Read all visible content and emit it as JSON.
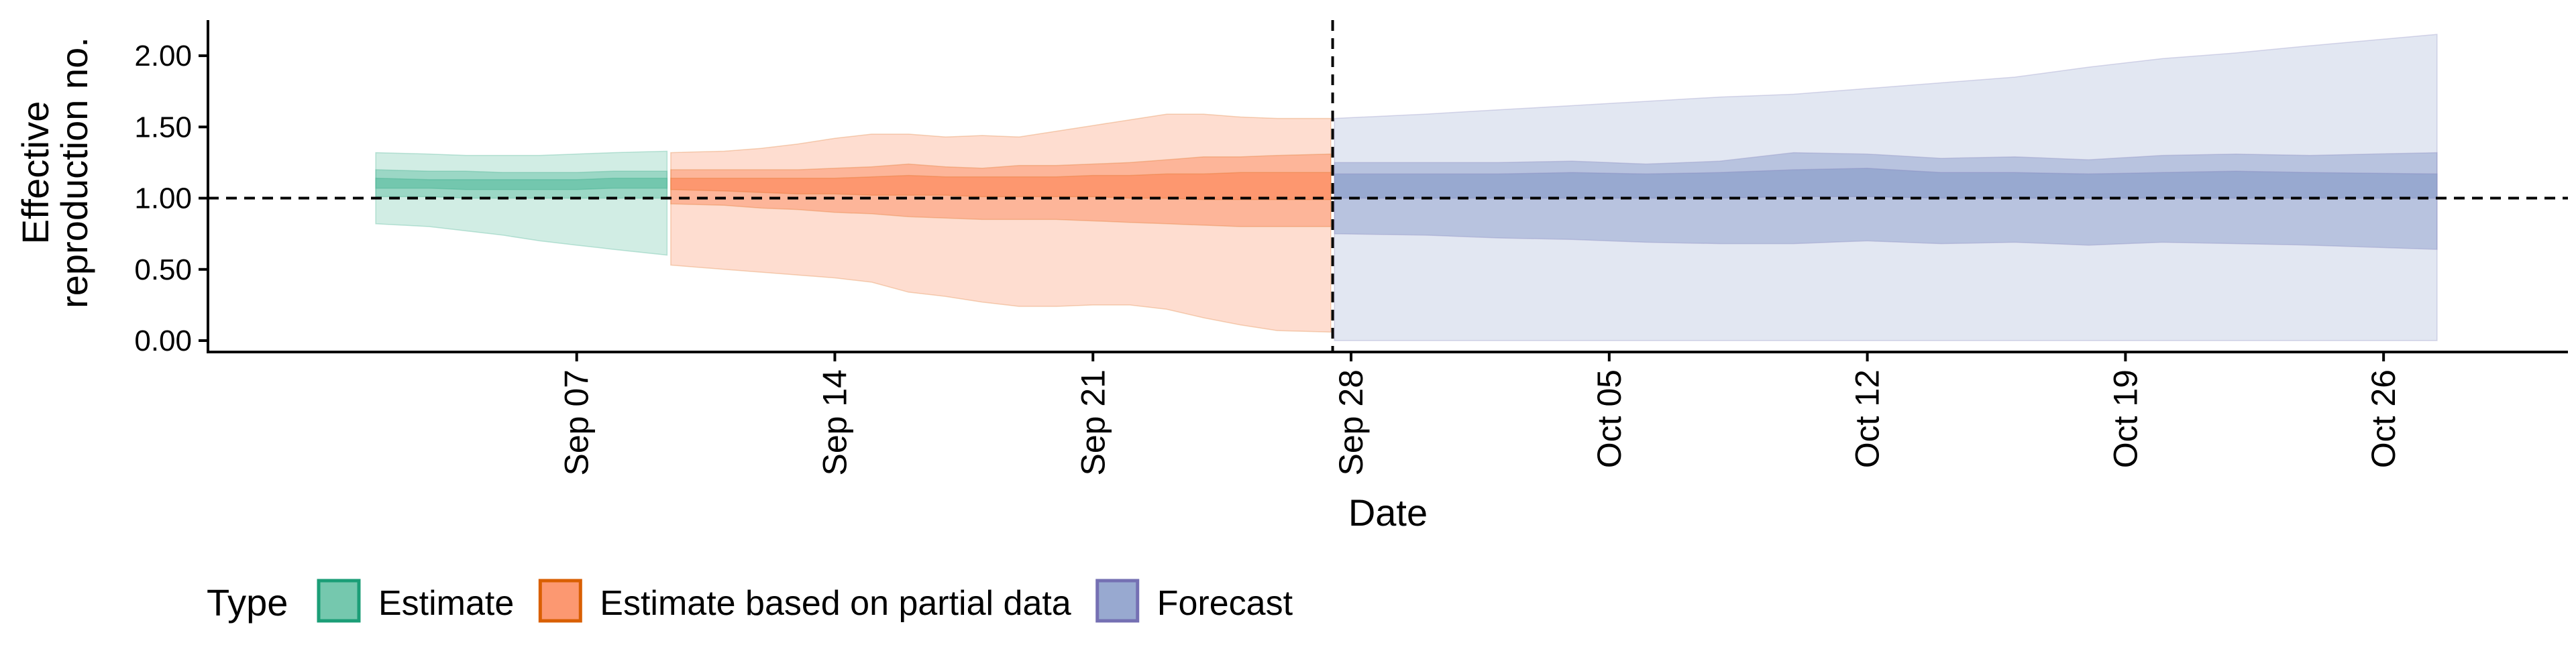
{
  "chart_data": {
    "type": "area",
    "title": "",
    "xlabel": "Date",
    "ylabel_lines": [
      "Effective",
      "reproduction no."
    ],
    "y_ticks": [
      {
        "value": 0.0,
        "label": "0.00"
      },
      {
        "value": 0.5,
        "label": "0.50"
      },
      {
        "value": 1.0,
        "label": "1.00"
      },
      {
        "value": 1.5,
        "label": "1.50"
      },
      {
        "value": 2.0,
        "label": "2.00"
      }
    ],
    "ylim": [
      -0.08,
      2.25
    ],
    "xlim": [
      "2020-08-28",
      "2020-10-31"
    ],
    "x_ticks": [
      {
        "date": "2020-09-07",
        "label": "Sep 07"
      },
      {
        "date": "2020-09-14",
        "label": "Sep 14"
      },
      {
        "date": "2020-09-21",
        "label": "Sep 21"
      },
      {
        "date": "2020-09-28",
        "label": "Sep 28"
      },
      {
        "date": "2020-10-05",
        "label": "Oct 05"
      },
      {
        "date": "2020-10-12",
        "label": "Oct 12"
      },
      {
        "date": "2020-10-19",
        "label": "Oct 19"
      },
      {
        "date": "2020-10-26",
        "label": "Oct 26"
      }
    ],
    "reference_lines": {
      "horizontal_y": 1.0,
      "vertical_date": "2020-09-27"
    },
    "grid": false,
    "legend": {
      "title": "Type",
      "position": "bottom-left"
    },
    "series": [
      {
        "name": "Estimate",
        "fill_color": "#66c2a5",
        "border_color": "#1b9e77",
        "bands": [
          {
            "level": "outer",
            "opacity": 0.3,
            "points": [
              {
                "date": "2020-09-02",
                "lower": 0.82,
                "upper": 1.32
              },
              {
                "date": "2020-09-03",
                "lower": 0.8,
                "upper": 1.31
              },
              {
                "date": "2020-09-04",
                "lower": 0.77,
                "upper": 1.3
              },
              {
                "date": "2020-09-05",
                "lower": 0.74,
                "upper": 1.3
              },
              {
                "date": "2020-09-06",
                "lower": 0.7,
                "upper": 1.3
              },
              {
                "date": "2020-09-07",
                "lower": 0.67,
                "upper": 1.31
              },
              {
                "date": "2020-09-08",
                "lower": 0.64,
                "upper": 1.32
              },
              {
                "date": "2020-09-09",
                "lower": 0.6,
                "upper": 1.33
              }
            ]
          },
          {
            "level": "middle",
            "opacity": 0.5,
            "points": [
              {
                "date": "2020-09-02",
                "lower": 1.01,
                "upper": 1.2
              },
              {
                "date": "2020-09-03",
                "lower": 1.01,
                "upper": 1.19
              },
              {
                "date": "2020-09-04",
                "lower": 1.0,
                "upper": 1.19
              },
              {
                "date": "2020-09-05",
                "lower": 1.0,
                "upper": 1.18
              },
              {
                "date": "2020-09-06",
                "lower": 1.0,
                "upper": 1.18
              },
              {
                "date": "2020-09-07",
                "lower": 1.0,
                "upper": 1.18
              },
              {
                "date": "2020-09-08",
                "lower": 1.0,
                "upper": 1.19
              },
              {
                "date": "2020-09-09",
                "lower": 1.0,
                "upper": 1.19
              }
            ]
          },
          {
            "level": "inner",
            "opacity": 0.75,
            "points": [
              {
                "date": "2020-09-02",
                "lower": 1.07,
                "upper": 1.14
              },
              {
                "date": "2020-09-03",
                "lower": 1.07,
                "upper": 1.13
              },
              {
                "date": "2020-09-04",
                "lower": 1.06,
                "upper": 1.13
              },
              {
                "date": "2020-09-05",
                "lower": 1.06,
                "upper": 1.13
              },
              {
                "date": "2020-09-06",
                "lower": 1.06,
                "upper": 1.13
              },
              {
                "date": "2020-09-07",
                "lower": 1.06,
                "upper": 1.13
              },
              {
                "date": "2020-09-08",
                "lower": 1.07,
                "upper": 1.14
              },
              {
                "date": "2020-09-09",
                "lower": 1.07,
                "upper": 1.14
              }
            ]
          }
        ]
      },
      {
        "name": "Estimate based on partial data",
        "fill_color": "#fc8d62",
        "border_color": "#d95f02",
        "bands": [
          {
            "level": "outer",
            "opacity": 0.3,
            "points": [
              {
                "date": "2020-09-10",
                "lower": 0.53,
                "upper": 1.32
              },
              {
                "date": "2020-09-11",
                "lower": 0.5,
                "upper": 1.33
              },
              {
                "date": "2020-09-12",
                "lower": 0.48,
                "upper": 1.35
              },
              {
                "date": "2020-09-13",
                "lower": 0.46,
                "upper": 1.38
              },
              {
                "date": "2020-09-14",
                "lower": 0.44,
                "upper": 1.42
              },
              {
                "date": "2020-09-15",
                "lower": 0.41,
                "upper": 1.45
              },
              {
                "date": "2020-09-16",
                "lower": 0.34,
                "upper": 1.45
              },
              {
                "date": "2020-09-17",
                "lower": 0.31,
                "upper": 1.43
              },
              {
                "date": "2020-09-18",
                "lower": 0.27,
                "upper": 1.44
              },
              {
                "date": "2020-09-19",
                "lower": 0.24,
                "upper": 1.43
              },
              {
                "date": "2020-09-20",
                "lower": 0.24,
                "upper": 1.47
              },
              {
                "date": "2020-09-21",
                "lower": 0.25,
                "upper": 1.51
              },
              {
                "date": "2020-09-22",
                "lower": 0.25,
                "upper": 1.55
              },
              {
                "date": "2020-09-23",
                "lower": 0.22,
                "upper": 1.59
              },
              {
                "date": "2020-09-24",
                "lower": 0.16,
                "upper": 1.59
              },
              {
                "date": "2020-09-25",
                "lower": 0.11,
                "upper": 1.57
              },
              {
                "date": "2020-09-26",
                "lower": 0.07,
                "upper": 1.56
              },
              {
                "date": "2020-09-27",
                "lower": 0.06,
                "upper": 1.56
              }
            ]
          },
          {
            "level": "middle",
            "opacity": 0.5,
            "points": [
              {
                "date": "2020-09-10",
                "lower": 0.96,
                "upper": 1.2
              },
              {
                "date": "2020-09-11",
                "lower": 0.95,
                "upper": 1.2
              },
              {
                "date": "2020-09-12",
                "lower": 0.93,
                "upper": 1.2
              },
              {
                "date": "2020-09-13",
                "lower": 0.92,
                "upper": 1.2
              },
              {
                "date": "2020-09-14",
                "lower": 0.9,
                "upper": 1.21
              },
              {
                "date": "2020-09-15",
                "lower": 0.89,
                "upper": 1.22
              },
              {
                "date": "2020-09-16",
                "lower": 0.87,
                "upper": 1.24
              },
              {
                "date": "2020-09-17",
                "lower": 0.86,
                "upper": 1.22
              },
              {
                "date": "2020-09-18",
                "lower": 0.85,
                "upper": 1.21
              },
              {
                "date": "2020-09-19",
                "lower": 0.85,
                "upper": 1.23
              },
              {
                "date": "2020-09-20",
                "lower": 0.85,
                "upper": 1.23
              },
              {
                "date": "2020-09-21",
                "lower": 0.84,
                "upper": 1.24
              },
              {
                "date": "2020-09-22",
                "lower": 0.83,
                "upper": 1.25
              },
              {
                "date": "2020-09-23",
                "lower": 0.82,
                "upper": 1.27
              },
              {
                "date": "2020-09-24",
                "lower": 0.81,
                "upper": 1.29
              },
              {
                "date": "2020-09-25",
                "lower": 0.8,
                "upper": 1.29
              },
              {
                "date": "2020-09-26",
                "lower": 0.8,
                "upper": 1.3
              },
              {
                "date": "2020-09-27",
                "lower": 0.8,
                "upper": 1.31
              }
            ]
          },
          {
            "level": "inner",
            "opacity": 0.75,
            "points": [
              {
                "date": "2020-09-10",
                "lower": 1.06,
                "upper": 1.14
              },
              {
                "date": "2020-09-11",
                "lower": 1.05,
                "upper": 1.14
              },
              {
                "date": "2020-09-12",
                "lower": 1.04,
                "upper": 1.14
              },
              {
                "date": "2020-09-13",
                "lower": 1.03,
                "upper": 1.14
              },
              {
                "date": "2020-09-14",
                "lower": 1.03,
                "upper": 1.14
              },
              {
                "date": "2020-09-15",
                "lower": 1.02,
                "upper": 1.15
              },
              {
                "date": "2020-09-16",
                "lower": 1.02,
                "upper": 1.16
              },
              {
                "date": "2020-09-17",
                "lower": 1.02,
                "upper": 1.15
              },
              {
                "date": "2020-09-18",
                "lower": 1.01,
                "upper": 1.15
              },
              {
                "date": "2020-09-19",
                "lower": 1.01,
                "upper": 1.15
              },
              {
                "date": "2020-09-20",
                "lower": 1.01,
                "upper": 1.15
              },
              {
                "date": "2020-09-21",
                "lower": 1.01,
                "upper": 1.16
              },
              {
                "date": "2020-09-22",
                "lower": 1.0,
                "upper": 1.16
              },
              {
                "date": "2020-09-23",
                "lower": 1.0,
                "upper": 1.17
              },
              {
                "date": "2020-09-24",
                "lower": 0.99,
                "upper": 1.17
              },
              {
                "date": "2020-09-25",
                "lower": 0.99,
                "upper": 1.18
              },
              {
                "date": "2020-09-26",
                "lower": 0.99,
                "upper": 1.18
              },
              {
                "date": "2020-09-27",
                "lower": 0.99,
                "upper": 1.18
              }
            ]
          }
        ]
      },
      {
        "name": "Forecast",
        "fill_color": "#8da0cb",
        "border_color": "#7570b3",
        "bands": [
          {
            "level": "outer",
            "opacity": 0.25,
            "points": [
              {
                "date": "2020-09-28",
                "lower": 0.0,
                "upper": 1.56
              },
              {
                "date": "2020-09-30",
                "lower": 0.0,
                "upper": 1.59
              },
              {
                "date": "2020-10-02",
                "lower": 0.0,
                "upper": 1.62
              },
              {
                "date": "2020-10-04",
                "lower": 0.0,
                "upper": 1.65
              },
              {
                "date": "2020-10-06",
                "lower": 0.0,
                "upper": 1.68
              },
              {
                "date": "2020-10-08",
                "lower": 0.0,
                "upper": 1.71
              },
              {
                "date": "2020-10-10",
                "lower": 0.0,
                "upper": 1.73
              },
              {
                "date": "2020-10-12",
                "lower": 0.0,
                "upper": 1.77
              },
              {
                "date": "2020-10-14",
                "lower": 0.0,
                "upper": 1.81
              },
              {
                "date": "2020-10-16",
                "lower": 0.0,
                "upper": 1.85
              },
              {
                "date": "2020-10-18",
                "lower": 0.0,
                "upper": 1.92
              },
              {
                "date": "2020-10-20",
                "lower": 0.0,
                "upper": 1.98
              },
              {
                "date": "2020-10-22",
                "lower": 0.0,
                "upper": 2.02
              },
              {
                "date": "2020-10-24",
                "lower": 0.0,
                "upper": 2.07
              },
              {
                "date": "2020-10-27",
                "lower": 0.0,
                "upper": 2.15
              }
            ]
          },
          {
            "level": "middle",
            "opacity": 0.5,
            "points": [
              {
                "date": "2020-09-28",
                "lower": 0.75,
                "upper": 1.25
              },
              {
                "date": "2020-09-30",
                "lower": 0.74,
                "upper": 1.25
              },
              {
                "date": "2020-10-02",
                "lower": 0.72,
                "upper": 1.25
              },
              {
                "date": "2020-10-04",
                "lower": 0.71,
                "upper": 1.26
              },
              {
                "date": "2020-10-06",
                "lower": 0.69,
                "upper": 1.24
              },
              {
                "date": "2020-10-08",
                "lower": 0.68,
                "upper": 1.26
              },
              {
                "date": "2020-10-10",
                "lower": 0.68,
                "upper": 1.32
              },
              {
                "date": "2020-10-12",
                "lower": 0.7,
                "upper": 1.31
              },
              {
                "date": "2020-10-14",
                "lower": 0.68,
                "upper": 1.28
              },
              {
                "date": "2020-10-16",
                "lower": 0.69,
                "upper": 1.29
              },
              {
                "date": "2020-10-18",
                "lower": 0.67,
                "upper": 1.27
              },
              {
                "date": "2020-10-20",
                "lower": 0.69,
                "upper": 1.3
              },
              {
                "date": "2020-10-22",
                "lower": 0.68,
                "upper": 1.31
              },
              {
                "date": "2020-10-24",
                "lower": 0.67,
                "upper": 1.3
              },
              {
                "date": "2020-10-27",
                "lower": 0.64,
                "upper": 1.32
              }
            ]
          },
          {
            "level": "inner",
            "opacity": 0.75,
            "points": [
              {
                "date": "2020-09-28",
                "lower": 1.0,
                "upper": 1.17
              },
              {
                "date": "2020-09-30",
                "lower": 1.0,
                "upper": 1.17
              },
              {
                "date": "2020-10-02",
                "lower": 1.0,
                "upper": 1.17
              },
              {
                "date": "2020-10-04",
                "lower": 1.0,
                "upper": 1.18
              },
              {
                "date": "2020-10-06",
                "lower": 1.0,
                "upper": 1.17
              },
              {
                "date": "2020-10-08",
                "lower": 1.0,
                "upper": 1.18
              },
              {
                "date": "2020-10-10",
                "lower": 1.01,
                "upper": 1.2
              },
              {
                "date": "2020-10-12",
                "lower": 1.01,
                "upper": 1.21
              },
              {
                "date": "2020-10-14",
                "lower": 1.0,
                "upper": 1.18
              },
              {
                "date": "2020-10-16",
                "lower": 1.0,
                "upper": 1.18
              },
              {
                "date": "2020-10-18",
                "lower": 1.0,
                "upper": 1.17
              },
              {
                "date": "2020-10-20",
                "lower": 1.0,
                "upper": 1.18
              },
              {
                "date": "2020-10-22",
                "lower": 1.0,
                "upper": 1.19
              },
              {
                "date": "2020-10-24",
                "lower": 1.0,
                "upper": 1.18
              },
              {
                "date": "2020-10-27",
                "lower": 1.0,
                "upper": 1.17
              }
            ]
          }
        ]
      }
    ]
  }
}
